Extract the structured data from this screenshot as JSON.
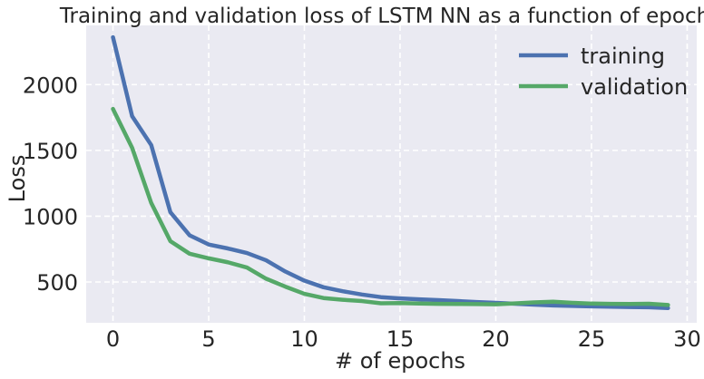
{
  "chart_data": {
    "type": "line",
    "title": "Training and validation loss of LSTM NN as a function of epochs",
    "xlabel": "# of epochs",
    "ylabel": "Loss",
    "xlim": [
      -1.4,
      30.5
    ],
    "ylim": [
      190,
      2450
    ],
    "xticks": [
      0,
      5,
      10,
      15,
      20,
      25,
      30
    ],
    "xtick_labels": [
      "0",
      "5",
      "10",
      "15",
      "20",
      "25",
      "30"
    ],
    "yticks": [
      500,
      1000,
      1500,
      2000
    ],
    "ytick_labels": [
      "500",
      "1000",
      "1500",
      "2000"
    ],
    "grid": true,
    "legend_position": "top-right",
    "x": [
      0,
      1,
      2,
      3,
      4,
      5,
      6,
      7,
      8,
      9,
      10,
      11,
      12,
      13,
      14,
      15,
      16,
      17,
      18,
      19,
      20,
      21,
      22,
      23,
      24,
      25,
      26,
      27,
      28,
      29
    ],
    "series": [
      {
        "name": "training",
        "color": "#4c72b0",
        "values": [
          2360,
          1760,
          1540,
          1030,
          855,
          785,
          755,
          720,
          665,
          580,
          510,
          460,
          430,
          405,
          385,
          375,
          368,
          362,
          355,
          348,
          342,
          335,
          328,
          322,
          318,
          315,
          312,
          310,
          308,
          302
        ]
      },
      {
        "name": "validation",
        "color": "#55a868",
        "values": [
          1815,
          1520,
          1100,
          810,
          715,
          680,
          650,
          610,
          525,
          465,
          410,
          378,
          365,
          355,
          338,
          340,
          336,
          334,
          333,
          332,
          330,
          337,
          345,
          350,
          342,
          336,
          334,
          333,
          335,
          325
        ]
      }
    ]
  }
}
